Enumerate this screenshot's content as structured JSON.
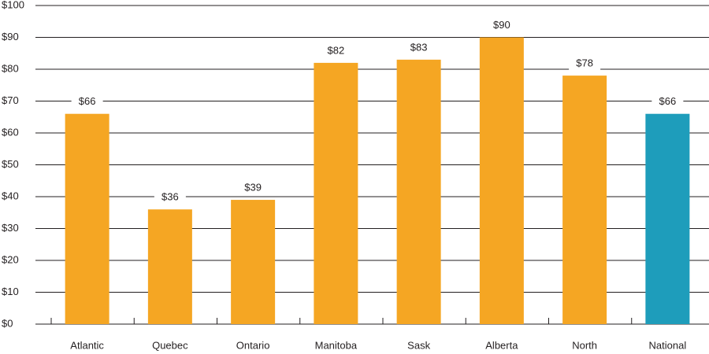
{
  "chart_data": {
    "type": "bar",
    "categories": [
      "Atlantic",
      "Quebec",
      "Ontario",
      "Manitoba",
      "Sask",
      "Alberta",
      "North",
      "National"
    ],
    "values": [
      66,
      36,
      39,
      82,
      83,
      90,
      78,
      66
    ],
    "value_labels": [
      "$66",
      "$36",
      "$39",
      "$82",
      "$83",
      "$90",
      "$78",
      "$66"
    ],
    "colors": [
      "#f5a623",
      "#f5a623",
      "#f5a623",
      "#f5a623",
      "#f5a623",
      "#f5a623",
      "#f5a623",
      "#1e9dbb"
    ],
    "ylim": [
      0,
      100
    ],
    "yticks": [
      {
        "value": 0,
        "label": "$0"
      },
      {
        "value": 10,
        "label": "$10"
      },
      {
        "value": 20,
        "label": "$20"
      },
      {
        "value": 30,
        "label": "$30"
      },
      {
        "value": 40,
        "label": "$40"
      },
      {
        "value": 50,
        "label": "$50"
      },
      {
        "value": 60,
        "label": "$60"
      },
      {
        "value": 70,
        "label": "$70"
      },
      {
        "value": 80,
        "label": "$80"
      },
      {
        "value": 90,
        "label": "$90"
      },
      {
        "value": 100,
        "label": "$100"
      }
    ],
    "grid": true
  }
}
